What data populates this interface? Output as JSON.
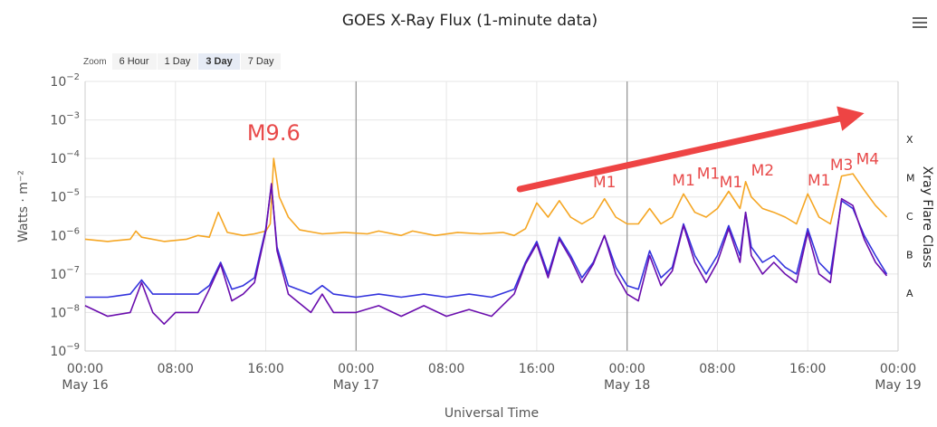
{
  "chart_data": {
    "type": "line",
    "title": "GOES X-Ray Flux (1-minute data)",
    "xlabel": "Universal Time",
    "ylabel": "Watts · m⁻²",
    "y2label": "Xray Flare Class",
    "yscale": "log",
    "ylim": [
      1e-09,
      0.01
    ],
    "ytick_exponents": [
      -2,
      -3,
      -4,
      -5,
      -6,
      -7,
      -8,
      -9
    ],
    "flare_classes": [
      {
        "label": "X",
        "value": 0.0001
      },
      {
        "label": "M",
        "value": 1e-05
      },
      {
        "label": "C",
        "value": 1e-06
      },
      {
        "label": "B",
        "value": 1e-07
      },
      {
        "label": "A",
        "value": 1e-08
      }
    ],
    "xlim_hours": [
      0,
      72
    ],
    "xtick_hours": [
      0,
      8,
      16,
      24,
      32,
      40,
      48,
      56,
      64,
      72
    ],
    "xtick_labels": [
      "00:00",
      "08:00",
      "16:00",
      "00:00",
      "08:00",
      "16:00",
      "00:00",
      "08:00",
      "16:00",
      "00:00"
    ],
    "date_labels": [
      {
        "hour": 0,
        "label": "May 16"
      },
      {
        "hour": 24,
        "label": "May 17"
      },
      {
        "hour": 48,
        "label": "May 18"
      },
      {
        "hour": 72,
        "label": "May 19"
      }
    ],
    "day_lines_hours": [
      24,
      48
    ],
    "series": [
      {
        "color": "#f5a623",
        "points": [
          [
            0,
            8e-07
          ],
          [
            2,
            7e-07
          ],
          [
            4,
            8e-07
          ],
          [
            4.5,
            1.3e-06
          ],
          [
            5,
            9e-07
          ],
          [
            7,
            7e-07
          ],
          [
            9,
            8e-07
          ],
          [
            10,
            1e-06
          ],
          [
            11,
            9e-07
          ],
          [
            11.8,
            4e-06
          ],
          [
            12.6,
            1.2e-06
          ],
          [
            14,
            1e-06
          ],
          [
            15,
            1.1e-06
          ],
          [
            16,
            1.3e-06
          ],
          [
            16.4,
            2e-06
          ],
          [
            16.7,
            0.0001
          ],
          [
            17.2,
            1e-05
          ],
          [
            18,
            3e-06
          ],
          [
            19,
            1.4e-06
          ],
          [
            21,
            1.1e-06
          ],
          [
            23,
            1.2e-06
          ],
          [
            25,
            1.1e-06
          ],
          [
            26,
            1.3e-06
          ],
          [
            28,
            1e-06
          ],
          [
            29,
            1.3e-06
          ],
          [
            31,
            1e-06
          ],
          [
            33,
            1.2e-06
          ],
          [
            35,
            1.1e-06
          ],
          [
            37,
            1.2e-06
          ],
          [
            38,
            1e-06
          ],
          [
            39,
            1.5e-06
          ],
          [
            40,
            7e-06
          ],
          [
            41,
            3e-06
          ],
          [
            42,
            8e-06
          ],
          [
            43,
            3e-06
          ],
          [
            44,
            2e-06
          ],
          [
            45,
            3e-06
          ],
          [
            46,
            9e-06
          ],
          [
            47,
            3e-06
          ],
          [
            48,
            2e-06
          ],
          [
            49,
            2e-06
          ],
          [
            50,
            5e-06
          ],
          [
            51,
            2e-06
          ],
          [
            52,
            3e-06
          ],
          [
            53,
            1.2e-05
          ],
          [
            54,
            4e-06
          ],
          [
            55,
            3e-06
          ],
          [
            56,
            5e-06
          ],
          [
            57,
            1.4e-05
          ],
          [
            58,
            5e-06
          ],
          [
            58.5,
            2.5e-05
          ],
          [
            59,
            1e-05
          ],
          [
            60,
            5e-06
          ],
          [
            61,
            4e-06
          ],
          [
            62,
            3e-06
          ],
          [
            63,
            2e-06
          ],
          [
            64,
            1.2e-05
          ],
          [
            65,
            3e-06
          ],
          [
            66,
            2e-06
          ],
          [
            67,
            3.5e-05
          ],
          [
            68,
            4e-05
          ],
          [
            69,
            1.5e-05
          ],
          [
            70,
            6e-06
          ],
          [
            71,
            3e-06
          ]
        ]
      },
      {
        "color": "#3333dd",
        "points": [
          [
            0,
            2.5e-08
          ],
          [
            2,
            2.5e-08
          ],
          [
            4,
            3e-08
          ],
          [
            5,
            7e-08
          ],
          [
            6,
            3e-08
          ],
          [
            8,
            3e-08
          ],
          [
            10,
            3e-08
          ],
          [
            11,
            5e-08
          ],
          [
            12,
            2e-07
          ],
          [
            13,
            4e-08
          ],
          [
            14,
            5e-08
          ],
          [
            15,
            8e-08
          ],
          [
            16,
            1.5e-06
          ],
          [
            16.5,
            2e-05
          ],
          [
            17,
            5e-07
          ],
          [
            18,
            5e-08
          ],
          [
            20,
            3e-08
          ],
          [
            21,
            5e-08
          ],
          [
            22,
            3e-08
          ],
          [
            24,
            2.5e-08
          ],
          [
            26,
            3e-08
          ],
          [
            28,
            2.5e-08
          ],
          [
            30,
            3e-08
          ],
          [
            32,
            2.5e-08
          ],
          [
            34,
            3e-08
          ],
          [
            36,
            2.5e-08
          ],
          [
            38,
            4e-08
          ],
          [
            39,
            2e-07
          ],
          [
            40,
            7e-07
          ],
          [
            41,
            1e-07
          ],
          [
            42,
            9e-07
          ],
          [
            43,
            3e-07
          ],
          [
            44,
            8e-08
          ],
          [
            45,
            2e-07
          ],
          [
            46,
            1e-06
          ],
          [
            47,
            1.5e-07
          ],
          [
            48,
            5e-08
          ],
          [
            49,
            4e-08
          ],
          [
            50,
            4e-07
          ],
          [
            51,
            8e-08
          ],
          [
            52,
            1.5e-07
          ],
          [
            53,
            2e-06
          ],
          [
            54,
            3e-07
          ],
          [
            55,
            1e-07
          ],
          [
            56,
            3e-07
          ],
          [
            57,
            1.8e-06
          ],
          [
            58,
            3e-07
          ],
          [
            58.5,
            4e-06
          ],
          [
            59,
            5e-07
          ],
          [
            60,
            2e-07
          ],
          [
            61,
            3e-07
          ],
          [
            62,
            1.5e-07
          ],
          [
            63,
            1e-07
          ],
          [
            64,
            1.5e-06
          ],
          [
            65,
            2e-07
          ],
          [
            66,
            1e-07
          ],
          [
            67,
            8e-06
          ],
          [
            68,
            5e-06
          ],
          [
            69,
            1e-06
          ],
          [
            70,
            3e-07
          ],
          [
            71,
            1e-07
          ]
        ]
      },
      {
        "color": "#6a0dad",
        "points": [
          [
            0,
            1.5e-08
          ],
          [
            2,
            8e-09
          ],
          [
            4,
            1e-08
          ],
          [
            5,
            6e-08
          ],
          [
            6,
            1e-08
          ],
          [
            7,
            5e-09
          ],
          [
            8,
            1e-08
          ],
          [
            10,
            1e-08
          ],
          [
            11,
            4e-08
          ],
          [
            12,
            1.8e-07
          ],
          [
            13,
            2e-08
          ],
          [
            14,
            3e-08
          ],
          [
            15,
            6e-08
          ],
          [
            16,
            1.3e-06
          ],
          [
            16.5,
            2.2e-05
          ],
          [
            17,
            4e-07
          ],
          [
            18,
            3e-08
          ],
          [
            20,
            1e-08
          ],
          [
            21,
            3e-08
          ],
          [
            22,
            1e-08
          ],
          [
            24,
            1e-08
          ],
          [
            26,
            1.5e-08
          ],
          [
            28,
            8e-09
          ],
          [
            30,
            1.5e-08
          ],
          [
            32,
            8e-09
          ],
          [
            34,
            1.2e-08
          ],
          [
            36,
            8e-09
          ],
          [
            38,
            3e-08
          ],
          [
            39,
            1.8e-07
          ],
          [
            40,
            6e-07
          ],
          [
            41,
            8e-08
          ],
          [
            42,
            8e-07
          ],
          [
            43,
            2.5e-07
          ],
          [
            44,
            6e-08
          ],
          [
            45,
            1.8e-07
          ],
          [
            46,
            1e-06
          ],
          [
            47,
            1e-07
          ],
          [
            48,
            3e-08
          ],
          [
            49,
            2e-08
          ],
          [
            50,
            3e-07
          ],
          [
            51,
            5e-08
          ],
          [
            52,
            1.2e-07
          ],
          [
            53,
            1.8e-06
          ],
          [
            54,
            2e-07
          ],
          [
            55,
            6e-08
          ],
          [
            56,
            2e-07
          ],
          [
            57,
            1.5e-06
          ],
          [
            58,
            2e-07
          ],
          [
            58.5,
            4e-06
          ],
          [
            59,
            3e-07
          ],
          [
            60,
            1e-07
          ],
          [
            61,
            2e-07
          ],
          [
            62,
            1e-07
          ],
          [
            63,
            6e-08
          ],
          [
            64,
            1.2e-06
          ],
          [
            65,
            1e-07
          ],
          [
            66,
            6e-08
          ],
          [
            67,
            9e-06
          ],
          [
            68,
            6e-06
          ],
          [
            69,
            8e-07
          ],
          [
            70,
            2e-07
          ],
          [
            71,
            9e-08
          ]
        ]
      }
    ],
    "annotations": [
      {
        "text": "M9.6",
        "hour": 16.7,
        "value": 0.0003,
        "size": "large"
      },
      {
        "text": "M1",
        "hour": 46,
        "value": 1.8e-05
      },
      {
        "text": "M1",
        "hour": 53,
        "value": 2e-05
      },
      {
        "text": "M1",
        "hour": 55.2,
        "value": 3e-05
      },
      {
        "text": "M1",
        "hour": 57.2,
        "value": 1.8e-05
      },
      {
        "text": "M2",
        "hour": 60,
        "value": 3.6e-05
      },
      {
        "text": "M1",
        "hour": 65,
        "value": 2e-05
      },
      {
        "text": "M3",
        "hour": 67,
        "value": 5e-05
      },
      {
        "text": "M4",
        "hour": 69.3,
        "value": 7e-05
      }
    ],
    "arrow": {
      "from": {
        "hour": 38.5,
        "value": 1.6e-05
      },
      "to": {
        "hour": 69,
        "value": 0.0015
      },
      "color": "#ee4444"
    },
    "grid": true,
    "legend": "none"
  },
  "zoom": {
    "label": "Zoom",
    "buttons": [
      "6 Hour",
      "1 Day",
      "3 Day",
      "7 Day"
    ],
    "active": "3 Day"
  },
  "colors": {
    "accent_red": "#e84a4a",
    "grid": "#e6e6e6",
    "day_line": "#999999"
  }
}
